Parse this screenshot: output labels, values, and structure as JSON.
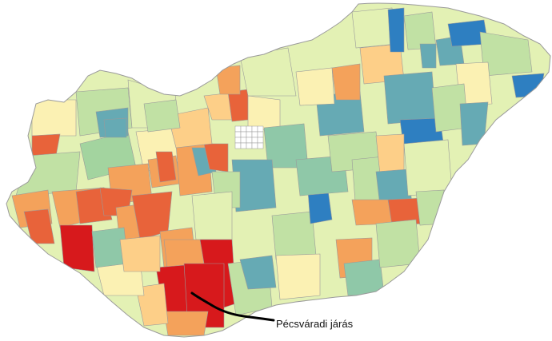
{
  "map": {
    "highlighted_district": "Pécsváradi járás",
    "colors": {
      "dark_red": "#d7191c",
      "red_orange": "#e8633a",
      "orange": "#f4a25b",
      "light_orange": "#fdcf88",
      "pale_yellow": "#fbf1b3",
      "pale_green": "#e3f1b4",
      "light_green": "#c1e1a4",
      "green": "#a3d49f",
      "teal_green": "#8fc8a8",
      "teal": "#66aab4",
      "blue": "#2e7fc1",
      "budapest_white": "#ffffff",
      "border": "#9a9a9a",
      "callout_line": "#000000"
    }
  }
}
